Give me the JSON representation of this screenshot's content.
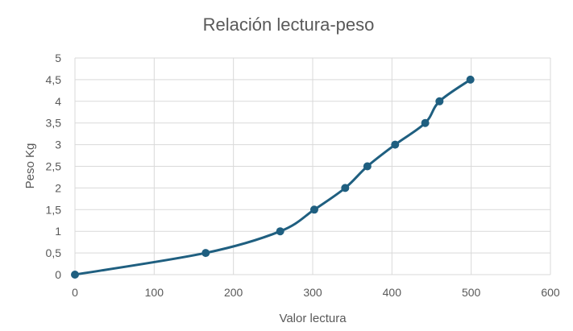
{
  "chart_data": {
    "type": "scatter",
    "title": "Relación lectura-peso",
    "xlabel": "Valor lectura",
    "ylabel": "Peso Kg",
    "xlim": [
      0,
      600
    ],
    "ylim": [
      0,
      5
    ],
    "x_ticks": [
      "0",
      "100",
      "200",
      "300",
      "400",
      "500",
      "600"
    ],
    "y_ticks": [
      "0",
      "0,5",
      "1",
      "1,5",
      "2",
      "2,5",
      "3",
      "3,5",
      "4",
      "4,5",
      "5"
    ],
    "grid": true,
    "smoothed_line": true,
    "series": [
      {
        "color": "#1f5f80",
        "x": [
          0,
          165,
          259,
          302,
          341,
          369,
          404,
          442,
          460,
          499
        ],
        "y": [
          0,
          0.5,
          1,
          1.5,
          2,
          2.5,
          3,
          3.5,
          4,
          4.5
        ]
      }
    ]
  }
}
